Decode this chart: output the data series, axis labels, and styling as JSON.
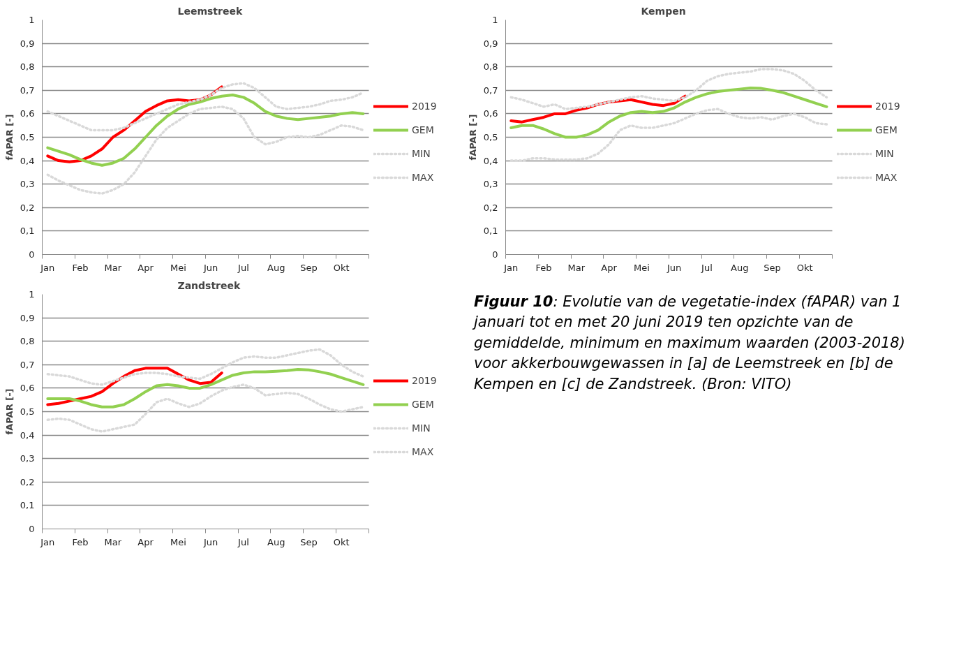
{
  "chart_data": [
    {
      "type": "line",
      "title": "Leemstreek",
      "ylabel": "fAPAR [-]",
      "categories": [
        "Jan",
        null,
        null,
        "Feb",
        null,
        null,
        "Mar",
        null,
        null,
        "Apr",
        null,
        null,
        "Mei",
        null,
        null,
        "Jun",
        null,
        null,
        "Jul",
        null,
        null,
        "Aug",
        null,
        null,
        "Sep",
        null,
        null,
        "Okt",
        null,
        null
      ],
      "ylim": [
        0,
        1
      ],
      "yticks": [
        0,
        {
          "value": 0.1,
          "label": "0,1"
        },
        {
          "value": 0.2,
          "label": "0,2"
        },
        {
          "value": 0.3,
          "label": "0,3"
        },
        {
          "value": 0.4,
          "label": "0,4"
        },
        {
          "value": 0.5,
          "label": "0,5"
        },
        {
          "value": 0.6,
          "label": "0,6"
        },
        {
          "value": 0.7,
          "label": "0,7"
        },
        {
          "value": 0.8,
          "label": "0,8"
        },
        {
          "value": 0.9,
          "label": "0,9"
        },
        1
      ],
      "grid": "y",
      "legend": "right",
      "marker": "none",
      "series": [
        {
          "name": "2019",
          "color": "#ff0000",
          "line_style": "solid",
          "values": [
            0.42,
            0.4,
            0.395,
            0.4,
            0.42,
            0.45,
            0.5,
            0.53,
            0.57,
            0.61,
            0.635,
            0.655,
            0.66,
            0.655,
            0.66,
            0.68,
            0.715,
            null,
            null,
            null,
            null,
            null,
            null,
            null,
            null,
            null,
            null,
            null,
            null,
            null
          ]
        },
        {
          "name": "GEM",
          "color": "#92d050",
          "line_style": "solid",
          "values": [
            0.455,
            0.44,
            0.425,
            0.405,
            0.39,
            0.38,
            0.39,
            0.41,
            0.45,
            0.5,
            0.55,
            0.59,
            0.62,
            0.64,
            0.65,
            0.665,
            0.675,
            0.68,
            0.67,
            0.645,
            0.61,
            0.59,
            0.58,
            0.575,
            0.58,
            0.585,
            0.59,
            0.6,
            0.605,
            0.6
          ]
        },
        {
          "name": "MIN",
          "color": "#d9d9d9",
          "line_style": "dotted",
          "values": [
            0.34,
            0.315,
            0.295,
            0.275,
            0.265,
            0.26,
            0.275,
            0.3,
            0.35,
            0.42,
            0.49,
            0.54,
            0.57,
            0.6,
            0.62,
            0.625,
            0.63,
            0.62,
            0.58,
            0.5,
            0.47,
            0.48,
            0.5,
            0.505,
            0.5,
            0.51,
            0.53,
            0.55,
            0.545,
            0.53
          ]
        },
        {
          "name": "MAX",
          "color": "#d9d9d9",
          "line_style": "dotted",
          "values": [
            0.61,
            0.59,
            0.57,
            0.55,
            0.53,
            0.53,
            0.53,
            0.54,
            0.56,
            0.58,
            0.6,
            0.62,
            0.64,
            0.65,
            0.66,
            0.68,
            0.71,
            0.725,
            0.73,
            0.71,
            0.67,
            0.63,
            0.62,
            0.625,
            0.63,
            0.64,
            0.655,
            0.66,
            0.67,
            0.69
          ]
        }
      ]
    },
    {
      "type": "line",
      "title": "Kempen",
      "ylabel": "fAPAR [-]",
      "categories": [
        "Jan",
        null,
        null,
        "Feb",
        null,
        null,
        "Mar",
        null,
        null,
        "Apr",
        null,
        null,
        "Mei",
        null,
        null,
        "Jun",
        null,
        null,
        "Jul",
        null,
        null,
        "Aug",
        null,
        null,
        "Sep",
        null,
        null,
        "Okt",
        null,
        null
      ],
      "ylim": [
        0,
        1
      ],
      "yticks": [
        0,
        {
          "value": 0.1,
          "label": "0,1"
        },
        {
          "value": 0.2,
          "label": "0,2"
        },
        {
          "value": 0.3,
          "label": "0,3"
        },
        {
          "value": 0.4,
          "label": "0,4"
        },
        {
          "value": 0.5,
          "label": "0,5"
        },
        {
          "value": 0.6,
          "label": "0,6"
        },
        {
          "value": 0.7,
          "label": "0,7"
        },
        {
          "value": 0.8,
          "label": "0,8"
        },
        {
          "value": 0.9,
          "label": "0,9"
        },
        1
      ],
      "grid": "y",
      "legend": "right",
      "marker": "none",
      "series": [
        {
          "name": "2019",
          "color": "#ff0000",
          "line_style": "solid",
          "values": [
            0.57,
            0.565,
            0.575,
            0.585,
            0.6,
            0.6,
            0.615,
            0.625,
            0.64,
            0.65,
            0.655,
            0.66,
            0.65,
            0.64,
            0.635,
            0.645,
            0.675,
            null,
            null,
            null,
            null,
            null,
            null,
            null,
            null,
            null,
            null,
            null,
            null,
            null
          ]
        },
        {
          "name": "GEM",
          "color": "#92d050",
          "line_style": "solid",
          "values": [
            0.54,
            0.55,
            0.55,
            0.535,
            0.515,
            0.5,
            0.5,
            0.51,
            0.53,
            0.565,
            0.59,
            0.605,
            0.61,
            0.605,
            0.61,
            0.625,
            0.65,
            0.67,
            0.685,
            0.695,
            0.7,
            0.705,
            0.71,
            0.708,
            0.7,
            0.69,
            0.675,
            0.66,
            0.645,
            0.63
          ]
        },
        {
          "name": "MIN",
          "color": "#d9d9d9",
          "line_style": "dotted",
          "values": [
            0.4,
            0.4,
            0.41,
            0.41,
            0.405,
            0.405,
            0.405,
            0.41,
            0.43,
            0.47,
            0.53,
            0.55,
            0.54,
            0.54,
            0.55,
            0.56,
            0.58,
            0.6,
            0.615,
            0.62,
            0.6,
            0.585,
            0.58,
            0.585,
            0.575,
            0.59,
            0.6,
            0.585,
            0.56,
            0.555
          ]
        },
        {
          "name": "MAX",
          "color": "#d9d9d9",
          "line_style": "dotted",
          "values": [
            0.67,
            0.66,
            0.645,
            0.63,
            0.64,
            0.62,
            0.625,
            0.63,
            0.64,
            0.65,
            0.66,
            0.67,
            0.675,
            0.665,
            0.66,
            0.655,
            0.67,
            0.7,
            0.74,
            0.76,
            0.77,
            0.775,
            0.78,
            0.79,
            0.79,
            0.785,
            0.77,
            0.74,
            0.7,
            0.67
          ]
        }
      ]
    },
    {
      "type": "line",
      "title": "Zandstreek",
      "ylabel": "fAPAR [-]",
      "categories": [
        "Jan",
        null,
        null,
        "Feb",
        null,
        null,
        "Mar",
        null,
        null,
        "Apr",
        null,
        null,
        "Mei",
        null,
        null,
        "Jun",
        null,
        null,
        "Jul",
        null,
        null,
        "Aug",
        null,
        null,
        "Sep",
        null,
        null,
        "Okt",
        null,
        null
      ],
      "ylim": [
        0,
        1
      ],
      "yticks": [
        0,
        {
          "value": 0.1,
          "label": "0,1"
        },
        {
          "value": 0.2,
          "label": "0,2"
        },
        {
          "value": 0.3,
          "label": "0,3"
        },
        {
          "value": 0.4,
          "label": "0,4"
        },
        {
          "value": 0.5,
          "label": "0,5"
        },
        {
          "value": 0.6,
          "label": "0,6"
        },
        {
          "value": 0.7,
          "label": "0,7"
        },
        {
          "value": 0.8,
          "label": "0,8"
        },
        {
          "value": 0.9,
          "label": "0,9"
        },
        1
      ],
      "grid": "y",
      "legend": "right",
      "marker": "none",
      "series": [
        {
          "name": "2019",
          "color": "#ff0000",
          "line_style": "solid",
          "values": [
            0.53,
            0.535,
            0.545,
            0.555,
            0.565,
            0.585,
            0.62,
            0.65,
            0.675,
            0.685,
            0.685,
            0.685,
            0.66,
            0.635,
            0.62,
            0.625,
            0.665,
            null,
            null,
            null,
            null,
            null,
            null,
            null,
            null,
            null,
            null,
            null,
            null,
            null
          ]
        },
        {
          "name": "GEM",
          "color": "#92d050",
          "line_style": "solid",
          "values": [
            0.555,
            0.555,
            0.555,
            0.545,
            0.53,
            0.52,
            0.52,
            0.53,
            0.555,
            0.585,
            0.61,
            0.615,
            0.61,
            0.6,
            0.6,
            0.615,
            0.635,
            0.655,
            0.665,
            0.67,
            0.67,
            0.672,
            0.675,
            0.68,
            0.678,
            0.67,
            0.66,
            0.645,
            0.63,
            0.615
          ]
        },
        {
          "name": "MIN",
          "color": "#d9d9d9",
          "line_style": "dotted",
          "values": [
            0.465,
            0.47,
            0.465,
            0.445,
            0.425,
            0.415,
            0.425,
            0.435,
            0.445,
            0.49,
            0.54,
            0.555,
            0.535,
            0.52,
            0.535,
            0.565,
            0.59,
            0.605,
            0.615,
            0.6,
            0.57,
            0.575,
            0.58,
            0.575,
            0.555,
            0.53,
            0.51,
            0.5,
            0.51,
            0.52
          ]
        },
        {
          "name": "MAX",
          "color": "#d9d9d9",
          "line_style": "dotted",
          "values": [
            0.66,
            0.655,
            0.65,
            0.635,
            0.62,
            0.615,
            0.63,
            0.645,
            0.66,
            0.665,
            0.665,
            0.66,
            0.65,
            0.645,
            0.64,
            0.66,
            0.685,
            0.71,
            0.73,
            0.735,
            0.73,
            0.73,
            0.74,
            0.75,
            0.76,
            0.765,
            0.74,
            0.7,
            0.67,
            0.65
          ]
        }
      ]
    },
    {
      "type": "other",
      "annotations": [
        "Figuur 10",
        ": Evolutie van de vegetatie-index (fAPAR) van 1 januari tot en met 20 juni 2019 ten opzichte van de gemiddelde, minimum en maximum waarden (2003-2018) voor akkerbouwgewassen in [a] de Leemstreek en [b] de Kempen en [c] de Zandstreek. (Bron: VITO)"
      ]
    }
  ]
}
